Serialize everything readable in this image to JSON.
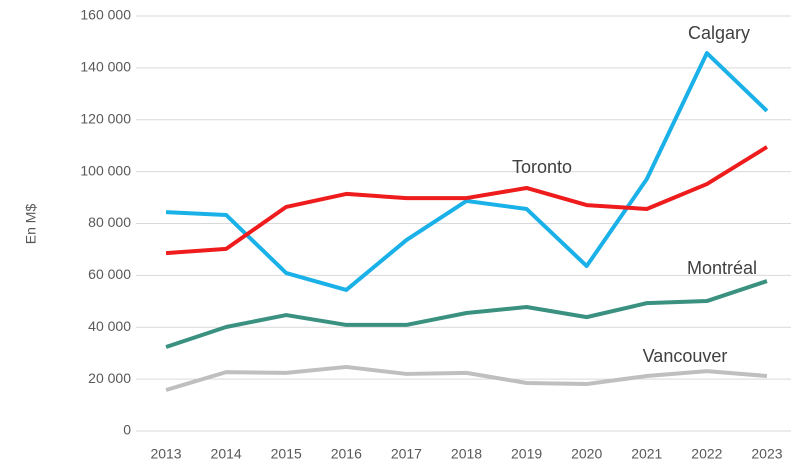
{
  "chart_data": {
    "type": "line",
    "y_label": "En M$",
    "categories": [
      "2013",
      "2014",
      "2015",
      "2016",
      "2017",
      "2018",
      "2019",
      "2020",
      "2021",
      "2022",
      "2023"
    ],
    "series": [
      {
        "name": "Calgary",
        "color": "#1ab0e8",
        "values": [
          84400,
          83300,
          60900,
          54400,
          73600,
          88700,
          85600,
          63600,
          97100,
          145700,
          123400
        ]
      },
      {
        "name": "Toronto",
        "color": "#ee1c1c",
        "values": [
          68600,
          70200,
          86400,
          91400,
          89800,
          89800,
          93700,
          87100,
          85600,
          95200,
          109500
        ]
      },
      {
        "name": "Montréal",
        "color": "#3a9180",
        "values": [
          32400,
          40100,
          44700,
          40900,
          40900,
          45500,
          47800,
          43900,
          49300,
          50100,
          57800
        ]
      },
      {
        "name": "Vancouver",
        "color": "#bfbfbf",
        "values": [
          15800,
          22700,
          22400,
          24700,
          22000,
          22400,
          18500,
          18100,
          21200,
          23100,
          21200
        ]
      }
    ],
    "ylim": [
      0,
      160000
    ],
    "yticks": [
      0,
      {
        "value": 20000,
        "label": "20 000"
      },
      {
        "value": 40000,
        "label": "40 000"
      },
      {
        "value": 60000,
        "label": "60 000"
      },
      {
        "value": 80000,
        "label": "80 000"
      },
      {
        "value": 100000,
        "label": "100 000"
      },
      {
        "value": 120000,
        "label": "120 000"
      },
      {
        "value": 140000,
        "label": "140 000"
      },
      {
        "value": 160000,
        "label": "160 000"
      }
    ],
    "grid": true
  }
}
